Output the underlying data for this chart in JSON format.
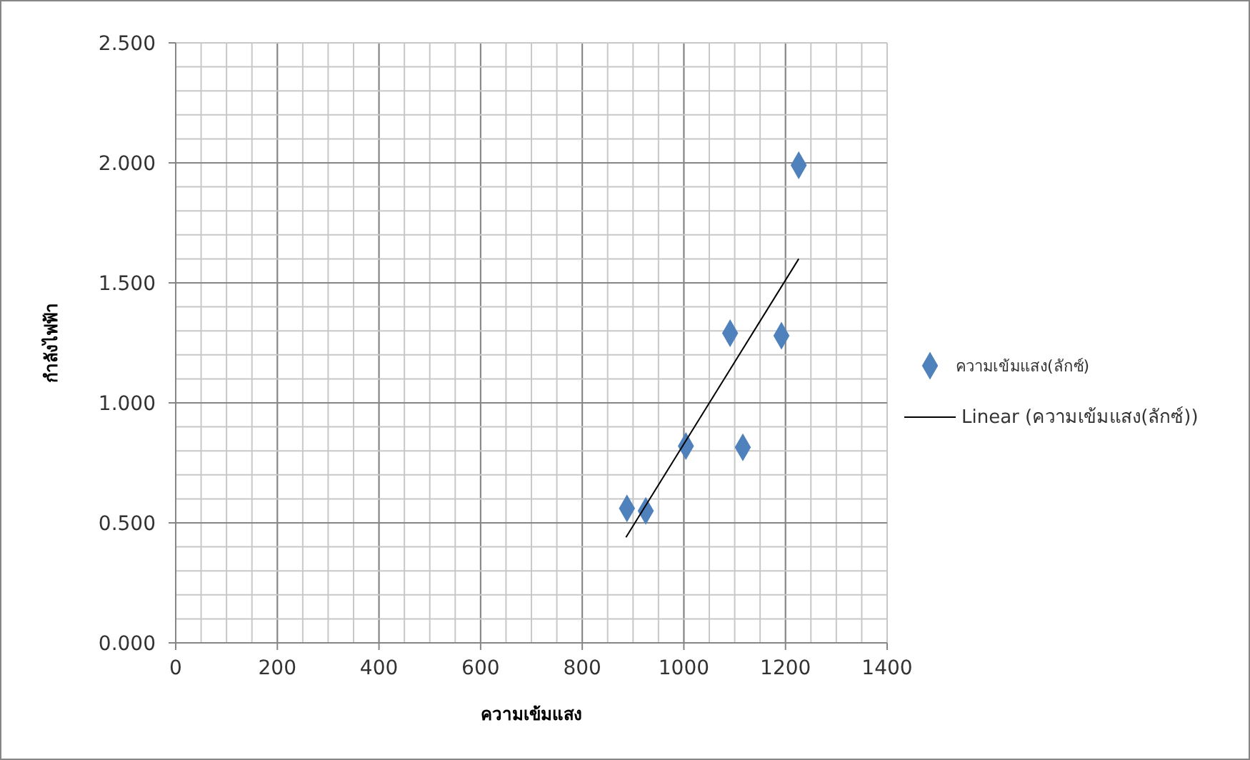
{
  "chart_data": {
    "type": "scatter",
    "xlabel": "ความเข้มแสง",
    "ylabel": "กำลังไฟฟ้า",
    "xlim": [
      0,
      1400
    ],
    "xticks": [
      0,
      200,
      400,
      600,
      800,
      1000,
      1200,
      1400
    ],
    "ylim": [
      0,
      2.5
    ],
    "yticks": [
      {
        "value": 0,
        "label": "0.000"
      },
      {
        "value": 0.5,
        "label": "0.500"
      },
      {
        "value": 1,
        "label": "1.000"
      },
      {
        "value": 1.5,
        "label": "1.500"
      },
      {
        "value": 2,
        "label": "2.000"
      },
      {
        "value": 2.5,
        "label": "2.500"
      }
    ],
    "grid": true,
    "legend": "right",
    "marker": "diamond",
    "series": [
      {
        "name": "ความเข้มแสง(ลักซ์)",
        "color": "#4f81bd",
        "x": [
          888,
          925,
          1004,
          1091,
          1116,
          1192,
          1226
        ],
        "values": [
          0.56,
          0.55,
          0.82,
          1.29,
          0.815,
          1.28,
          1.99
        ]
      },
      {
        "name": "Linear (ความเข้มแสง(ลักซ์))",
        "type": "line",
        "color": "#000000",
        "x": [
          886,
          1226
        ],
        "values": [
          0.44,
          1.6
        ],
        "marker": "none",
        "line_style": "solid"
      }
    ]
  }
}
